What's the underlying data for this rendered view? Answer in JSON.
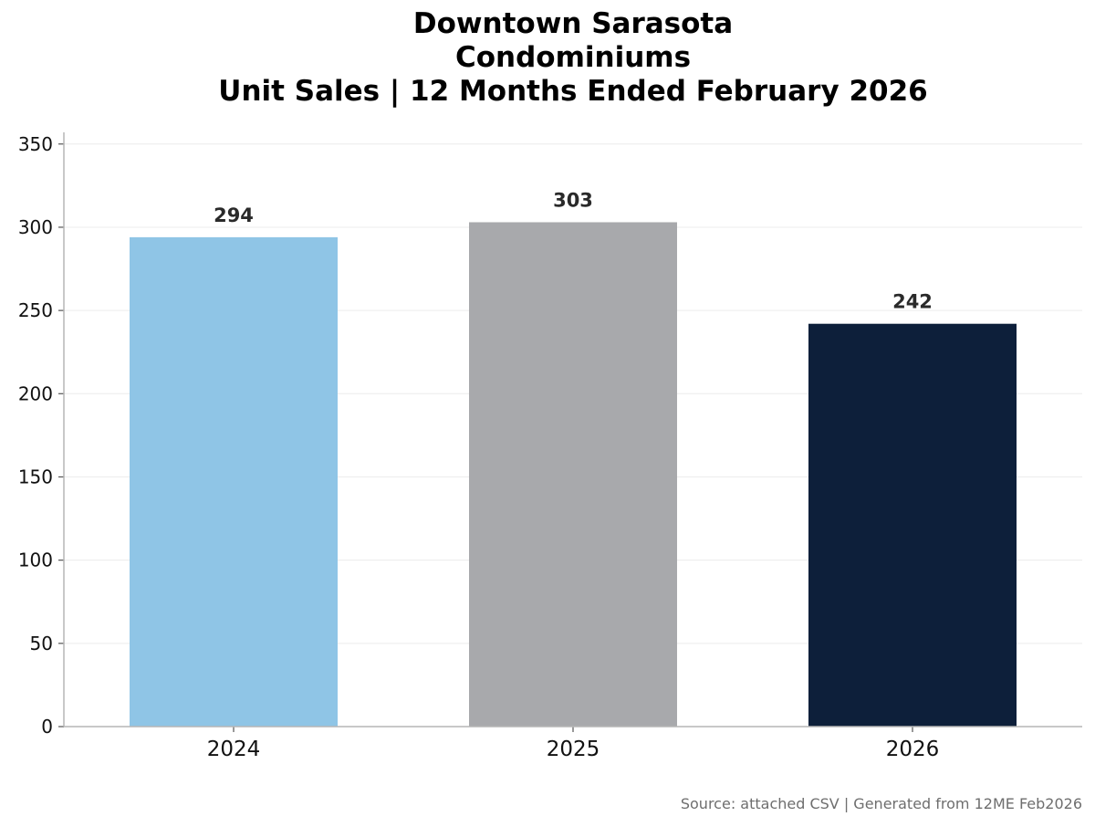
{
  "chart_data": {
    "type": "bar",
    "title_lines": [
      "Downtown Sarasota",
      "Condominiums",
      "Unit Sales | 12 Months Ended February 2026"
    ],
    "categories": [
      "2024",
      "2025",
      "2026"
    ],
    "values": [
      294,
      303,
      242
    ],
    "data_labels": [
      "294",
      "303",
      "242"
    ],
    "bar_colors": [
      "#8fc5e6",
      "#a8a9ac",
      "#0d1f3a"
    ],
    "xlabel": "",
    "ylabel": "",
    "ylim": [
      0,
      357
    ],
    "yticks": [
      0,
      50,
      100,
      150,
      200,
      250,
      300,
      350
    ],
    "grid": true,
    "legend": "none",
    "source_note": "Source: attached CSV | Generated from 12ME Feb2026"
  }
}
